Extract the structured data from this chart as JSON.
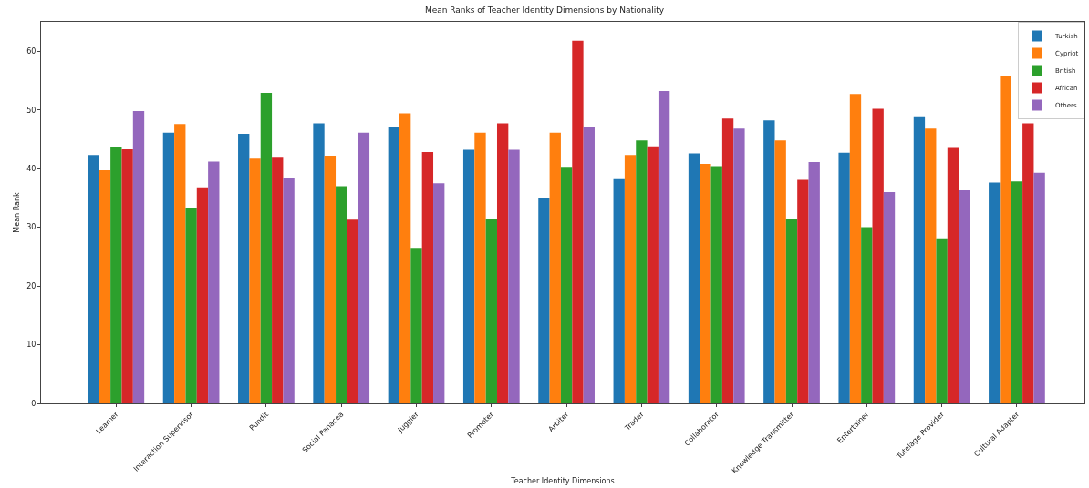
{
  "chart_data": {
    "type": "bar",
    "title": "Mean Ranks of Teacher Identity Dimensions by Nationality",
    "xlabel": "Teacher Identity Dimensions",
    "ylabel": "Mean Rank",
    "categories": [
      "Learner",
      "Interaction Supervisor",
      "Pundit",
      "Social Panacea",
      "Juggler",
      "Promoter",
      "Arbiter",
      "Trader",
      "Collaborator",
      "Knowledge Transmitter",
      "Entertainer",
      "Tutelage Provider",
      "Cultural Adapter"
    ],
    "series": [
      {
        "name": "Turkish",
        "color": "#1f77b4",
        "values": [
          42.3,
          46.1,
          45.9,
          47.7,
          47.0,
          43.2,
          35.0,
          38.2,
          42.6,
          48.2,
          42.7,
          48.9,
          37.6
        ]
      },
      {
        "name": "Cypriot",
        "color": "#ff7f0e",
        "values": [
          39.7,
          47.6,
          41.7,
          42.2,
          49.4,
          46.1,
          46.1,
          42.3,
          40.8,
          44.8,
          52.7,
          46.8,
          55.7
        ]
      },
      {
        "name": "British",
        "color": "#2ca02c",
        "values": [
          43.7,
          33.3,
          52.9,
          37.0,
          26.5,
          31.5,
          40.3,
          44.8,
          40.4,
          31.5,
          30.0,
          28.1,
          37.8
        ]
      },
      {
        "name": "African",
        "color": "#d62728",
        "values": [
          43.3,
          36.8,
          42.0,
          31.3,
          42.8,
          47.7,
          61.8,
          43.8,
          48.5,
          38.1,
          50.2,
          43.5,
          47.7
        ]
      },
      {
        "name": "Others",
        "color": "#9467bd",
        "values": [
          49.8,
          41.2,
          38.4,
          46.1,
          37.5,
          43.2,
          47.0,
          53.2,
          46.8,
          41.1,
          36.0,
          36.3,
          39.3
        ]
      }
    ],
    "ylim": [
      0,
      65
    ],
    "yticks": [
      0,
      10,
      20,
      30,
      40,
      50,
      60
    ],
    "legend": "top right"
  }
}
